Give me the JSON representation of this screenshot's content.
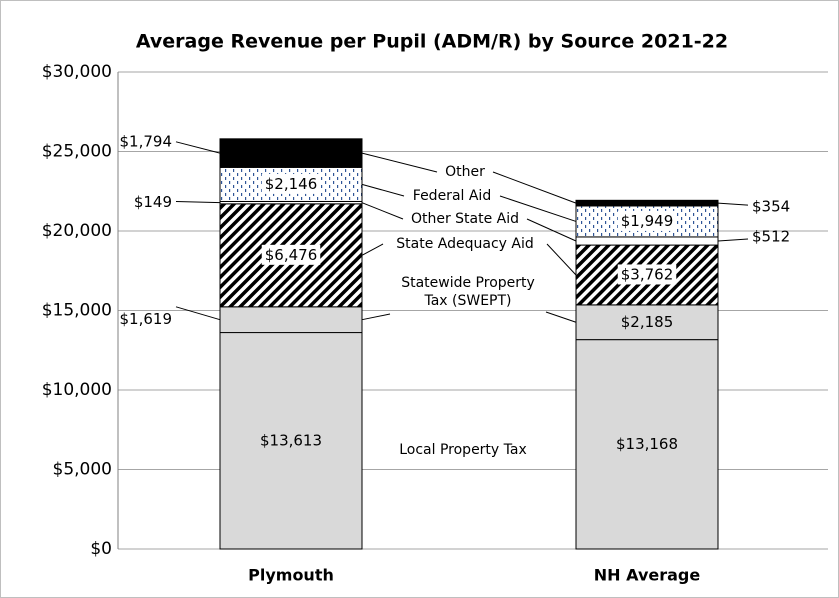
{
  "chart_data": {
    "type": "stacked_bar",
    "title": "Average Revenue per Pupil (ADM/R) by Source 2021-22",
    "categories": [
      "Plymouth",
      "NH Average"
    ],
    "series": [
      {
        "name": "Local Property Tax",
        "color": "#d9d9d9",
        "values": [
          13613,
          13168
        ],
        "value_labels": [
          "$13,613",
          "$13,168"
        ]
      },
      {
        "name": "Statewide Property Tax (SWEPT)",
        "color": "#d9d9d9",
        "values": [
          1619,
          2185
        ],
        "value_labels": [
          "$1,619",
          "$2,185"
        ]
      },
      {
        "name": "State Adequacy Aid",
        "color": "#000000",
        "pattern": "hatch",
        "values": [
          6476,
          3762
        ],
        "value_labels": [
          "$6,476",
          "$3,762"
        ]
      },
      {
        "name": "Other State Aid",
        "color": "#ffffff",
        "values": [
          149,
          512
        ],
        "value_labels": [
          "$149",
          "$512"
        ]
      },
      {
        "name": "Federal Aid",
        "color": "#2f5597",
        "pattern": "dots",
        "values": [
          2146,
          1949
        ],
        "value_labels": [
          "$2,146",
          "$1,949"
        ]
      },
      {
        "name": "Other",
        "color": "#000000",
        "values": [
          1794,
          354
        ],
        "value_labels": [
          "$1,794",
          "$354"
        ]
      }
    ],
    "ylim": [
      0,
      30000
    ],
    "yticks": [
      {
        "value": 0,
        "label": "$0"
      },
      {
        "value": 5000,
        "label": "$5,000"
      },
      {
        "value": 10000,
        "label": "$10,000"
      },
      {
        "value": 15000,
        "label": "$15,000"
      },
      {
        "value": 20000,
        "label": "$20,000"
      },
      {
        "value": 25000,
        "label": "$25,000"
      },
      {
        "value": 30000,
        "label": "$30,000"
      }
    ],
    "grid": true
  }
}
